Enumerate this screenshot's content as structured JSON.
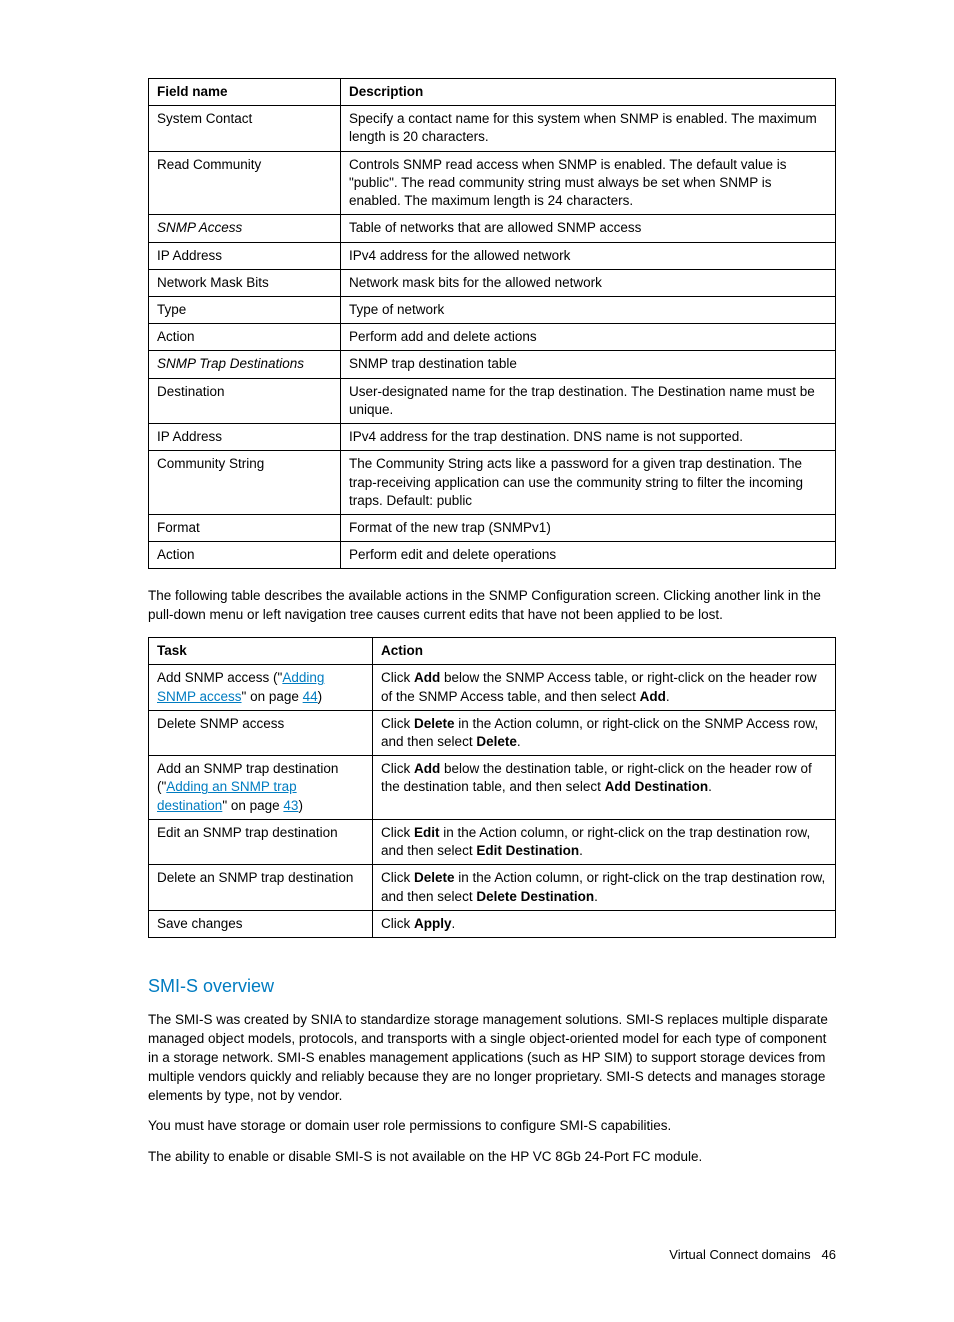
{
  "table1": {
    "headers": [
      "Field name",
      "Description"
    ],
    "rows": [
      {
        "c0": "System Contact",
        "italic": false,
        "c1": "Specify a contact name for this system when SNMP is enabled. The maximum length is 20 characters."
      },
      {
        "c0": "Read Community",
        "italic": false,
        "c1": "Controls SNMP read access when SNMP is enabled. The default value is \"public\". The read community string must always be set when SNMP is enabled. The maximum length is 24 characters."
      },
      {
        "c0": "SNMP Access",
        "italic": true,
        "c1": "Table of networks that are allowed SNMP access"
      },
      {
        "c0": "IP Address",
        "italic": false,
        "c1": "IPv4 address for the allowed network"
      },
      {
        "c0": "Network Mask Bits",
        "italic": false,
        "c1": "Network mask bits for the allowed network"
      },
      {
        "c0": "Type",
        "italic": false,
        "c1": "Type of network"
      },
      {
        "c0": "Action",
        "italic": false,
        "c1": "Perform add and delete actions"
      },
      {
        "c0": "SNMP Trap Destinations",
        "italic": true,
        "c1": "SNMP trap destination table"
      },
      {
        "c0": "Destination",
        "italic": false,
        "c1": "User-designated name for the trap destination. The Destination name must be unique."
      },
      {
        "c0": "IP Address",
        "italic": false,
        "c1": "IPv4 address for the trap destination. DNS name is not supported."
      },
      {
        "c0": "Community String",
        "italic": false,
        "c1": "The Community String acts like a password for a given trap destination. The trap-receiving application can use the community string to filter the incoming traps. Default: public"
      },
      {
        "c0": "Format",
        "italic": false,
        "c1": "Format of the new trap (SNMPv1)"
      },
      {
        "c0": "Action",
        "italic": false,
        "c1": "Perform edit and delete operations"
      }
    ]
  },
  "para_between": "The following table describes the available actions in the SNMP Configuration screen. Clicking another link in the pull-down menu or left navigation tree causes current edits that have not been applied to be lost.",
  "table2": {
    "headers": [
      "Task",
      "Action"
    ],
    "rows": [
      {
        "task_parts": [
          {
            "t": "Add SNMP access (\"",
            "link": false
          },
          {
            "t": "Adding SNMP access",
            "link": true
          },
          {
            "t": "\" on page ",
            "link": false
          },
          {
            "t": "44",
            "link": true
          },
          {
            "t": ")",
            "link": false
          }
        ],
        "action_parts": [
          {
            "t": "Click "
          },
          {
            "t": "Add",
            "b": true
          },
          {
            "t": " below the SNMP Access table, or right-click on the header row of the SNMP Access table, and then select "
          },
          {
            "t": "Add",
            "b": true
          },
          {
            "t": "."
          }
        ]
      },
      {
        "task_parts": [
          {
            "t": "Delete SNMP access",
            "link": false
          }
        ],
        "action_parts": [
          {
            "t": "Click "
          },
          {
            "t": "Delete",
            "b": true
          },
          {
            "t": " in the Action column, or right-click on the SNMP Access row, and then select "
          },
          {
            "t": "Delete",
            "b": true
          },
          {
            "t": "."
          }
        ]
      },
      {
        "task_parts": [
          {
            "t": "Add an SNMP trap destination (\"",
            "link": false
          },
          {
            "t": "Adding an SNMP trap destination",
            "link": true
          },
          {
            "t": "\" on page ",
            "link": false
          },
          {
            "t": "43",
            "link": true
          },
          {
            "t": ")",
            "link": false
          }
        ],
        "action_parts": [
          {
            "t": "Click "
          },
          {
            "t": "Add",
            "b": true
          },
          {
            "t": " below the destination table, or right-click on the header row of the destination table, and then select "
          },
          {
            "t": "Add Destination",
            "b": true
          },
          {
            "t": "."
          }
        ]
      },
      {
        "task_parts": [
          {
            "t": "Edit an SNMP trap destination",
            "link": false
          }
        ],
        "action_parts": [
          {
            "t": "Click "
          },
          {
            "t": "Edit",
            "b": true
          },
          {
            "t": " in the Action column, or right-click on the trap destination row, and then select "
          },
          {
            "t": "Edit Destination",
            "b": true
          },
          {
            "t": "."
          }
        ]
      },
      {
        "task_parts": [
          {
            "t": "Delete an SNMP trap destination",
            "link": false
          }
        ],
        "action_parts": [
          {
            "t": "Click "
          },
          {
            "t": "Delete",
            "b": true
          },
          {
            "t": " in the Action column, or right-click on the trap destination row, and then select "
          },
          {
            "t": "Delete Destination",
            "b": true
          },
          {
            "t": "."
          }
        ]
      },
      {
        "task_parts": [
          {
            "t": "Save changes",
            "link": false
          }
        ],
        "action_parts": [
          {
            "t": "Click "
          },
          {
            "t": "Apply",
            "b": true
          },
          {
            "t": "."
          }
        ]
      }
    ]
  },
  "heading": "SMI-S overview",
  "body_paras": [
    "The SMI-S was created by SNIA to standardize storage management solutions. SMI-S replaces multiple disparate managed object models, protocols, and transports with a single object-oriented model for each type of component in a storage network. SMI-S enables management applications (such as HP SIM) to support storage devices from multiple vendors quickly and reliably because they are no longer proprietary. SMI-S detects and manages storage elements by type, not by vendor.",
    "You must have storage or domain user role permissions to configure SMI-S capabilities.",
    "The ability to enable or disable SMI-S is not available on the HP VC 8Gb 24-Port FC module."
  ],
  "footer": {
    "section": "Virtual Connect domains",
    "page": "46"
  }
}
